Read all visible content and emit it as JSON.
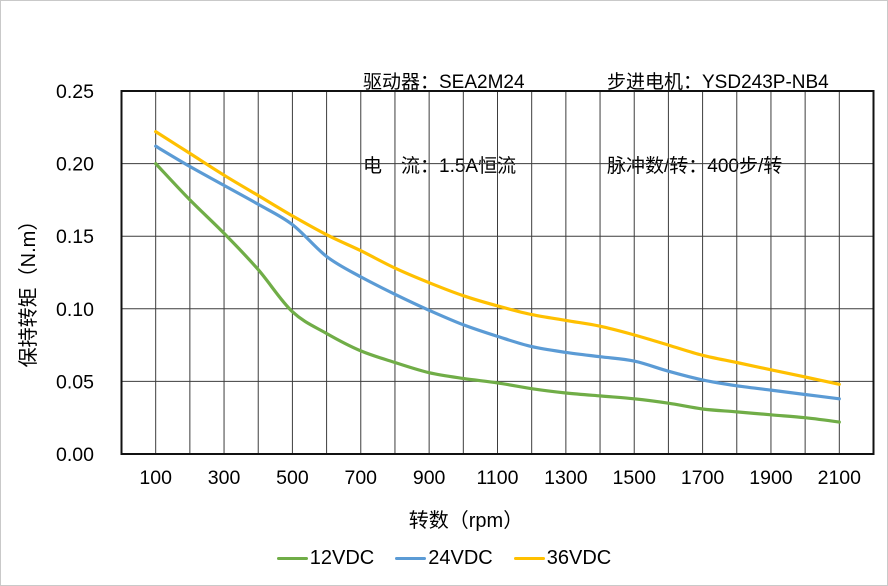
{
  "header": {
    "driver": "驱动器：SEA2M24",
    "current": "电　流：1.5A恒流",
    "motor": "步进电机：YSD243P-NB4",
    "pulses_per_rev": "脉冲数/转：400步/转"
  },
  "chart_data": {
    "type": "line",
    "title": "",
    "xlabel": "转数（rpm）",
    "ylabel": "保持转矩（N.m）",
    "x": [
      100,
      200,
      300,
      400,
      500,
      600,
      700,
      800,
      900,
      1000,
      1100,
      1200,
      1300,
      1400,
      1500,
      1600,
      1700,
      1800,
      1900,
      2000,
      2100
    ],
    "series": [
      {
        "name": "12VDC",
        "color": "#70AD47",
        "values": [
          0.2,
          0.175,
          0.152,
          0.127,
          0.098,
          0.083,
          0.071,
          0.063,
          0.056,
          0.052,
          0.049,
          0.045,
          0.042,
          0.04,
          0.038,
          0.035,
          0.031,
          0.029,
          0.027,
          0.025,
          0.022
        ]
      },
      {
        "name": "24VDC",
        "color": "#5B9BD5",
        "values": [
          0.212,
          0.198,
          0.185,
          0.172,
          0.158,
          0.136,
          0.122,
          0.11,
          0.099,
          0.089,
          0.081,
          0.074,
          0.07,
          0.067,
          0.064,
          0.057,
          0.051,
          0.047,
          0.044,
          0.041,
          0.038
        ]
      },
      {
        "name": "36VDC",
        "color": "#FFC000",
        "values": [
          0.222,
          0.207,
          0.192,
          0.178,
          0.164,
          0.151,
          0.14,
          0.128,
          0.118,
          0.109,
          0.102,
          0.096,
          0.092,
          0.088,
          0.082,
          0.075,
          0.068,
          0.063,
          0.058,
          0.053,
          0.048
        ]
      }
    ],
    "xlim": [
      0,
      2200
    ],
    "ylim": [
      0,
      0.25
    ],
    "x_grid_step": 100,
    "x_tick_values": [
      100,
      300,
      500,
      700,
      900,
      1100,
      1300,
      1500,
      1700,
      1900,
      2100
    ],
    "x_tick_labels": [
      "100",
      "300",
      "500",
      "700",
      "900",
      "1100",
      "1300",
      "1500",
      "1700",
      "1900",
      "2100"
    ],
    "y_tick_values": [
      0.0,
      0.05,
      0.1,
      0.15,
      0.2,
      0.25
    ],
    "y_tick_labels": [
      "0.00",
      "0.05",
      "0.10",
      "0.15",
      "0.20",
      "0.25"
    ],
    "grid": true,
    "legend_position": "bottom",
    "gridline_color": "#3d3d3d",
    "border_color": "#111111"
  }
}
